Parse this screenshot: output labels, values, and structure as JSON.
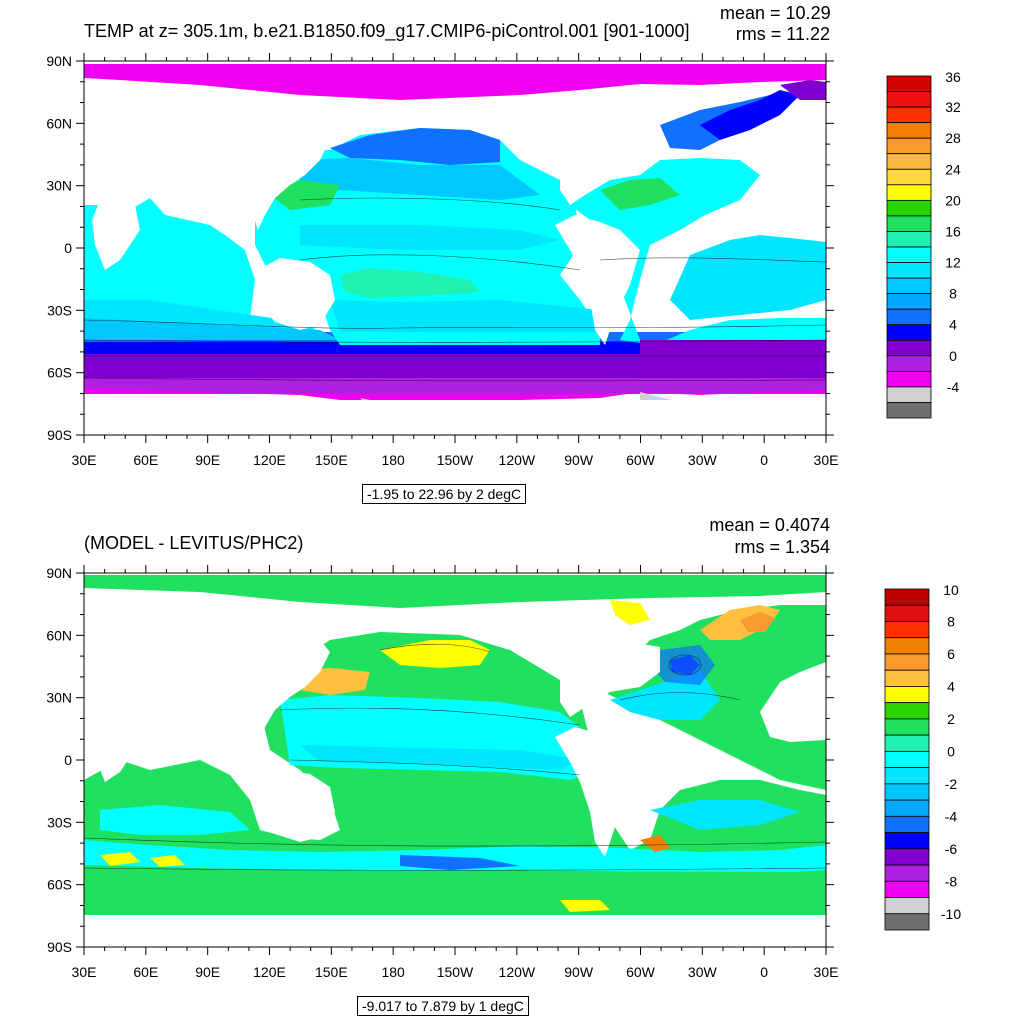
{
  "top_panel": {
    "title": "TEMP at z= 305.1m, b.e21.B1850.f09_g17.CMIP6-piControl.001 [901-1000]",
    "mean": "mean = 10.29",
    "rms": "rms = 11.22",
    "range": "-1.95 to 22.96 by 2 degC",
    "colorbar_labels": [
      "36",
      "32",
      "28",
      "24",
      "20",
      "16",
      "12",
      "8",
      "4",
      "0",
      "-4"
    ],
    "colorbar_colors": [
      "#d40000",
      "#ec1010",
      "#ff3000",
      "#f28000",
      "#f89a30",
      "#fbb840",
      "#ffd83a",
      "#ffff00",
      "#2ad400",
      "#20e060",
      "#20f0b0",
      "#00ffff",
      "#00e6ff",
      "#00c8ff",
      "#00a8ff",
      "#1070ff",
      "#0000ff",
      "#8000d0",
      "#b020e0",
      "#f000f0",
      "#d0d0d0",
      "#707070"
    ]
  },
  "bottom_panel": {
    "title": "(MODEL - LEVITUS/PHC2)",
    "mean": "mean = 0.4074",
    "rms": "rms = 1.354",
    "range": "-9.017 to 7.879 by 1 degC",
    "colorbar_labels": [
      "10",
      "8",
      "6",
      "4",
      "2",
      "0",
      "-2",
      "-4",
      "-6",
      "-8",
      "-10"
    ],
    "colorbar_colors": [
      "#c00000",
      "#e01010",
      "#ff3000",
      "#f08000",
      "#f89a30",
      "#ffc040",
      "#ffff00",
      "#2ad400",
      "#20e060",
      "#20f0b0",
      "#00ffff",
      "#00e6ff",
      "#00c8ff",
      "#00a8ff",
      "#1070ff",
      "#0000ff",
      "#8000d0",
      "#b020e0",
      "#f000f0",
      "#d0d0d0",
      "#707070"
    ]
  },
  "lat_labels": [
    "90N",
    "60N",
    "30N",
    "0",
    "30S",
    "60S",
    "90S"
  ],
  "lon_labels": [
    "30E",
    "60E",
    "90E",
    "120E",
    "150E",
    "180",
    "150W",
    "120W",
    "90W",
    "60W",
    "30W",
    "0",
    "30E"
  ]
}
